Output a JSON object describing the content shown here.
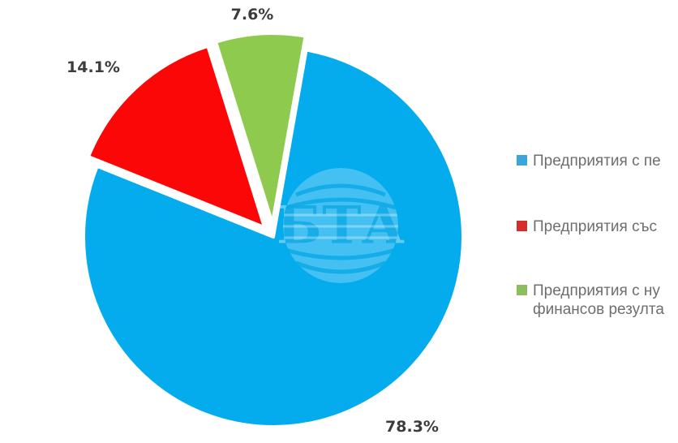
{
  "chart_data": {
    "type": "pie",
    "unit": "%",
    "slices": [
      {
        "name": "enterprises-with-profit",
        "value": 78.3,
        "data_label": "78.3%",
        "color": "#04ACEE"
      },
      {
        "name": "enterprises-with-loss",
        "value": 14.1,
        "data_label": "14.1%",
        "color": "#FB0707"
      },
      {
        "name": "enterprises-zero-financial-result",
        "value": 7.6,
        "data_label": "7.6%",
        "color": "#8DCA4E"
      }
    ],
    "start_angle_deg": 10,
    "direction": "clockwise",
    "legend_position": "right",
    "legend_entries_visible_text": [
      "Предприятия с пе",
      "Предприятия със",
      "Предприятия с ну финансов резулта"
    ]
  },
  "watermark": {
    "text": "БТА"
  },
  "legend": {
    "items": [
      {
        "marker_color": "#3BA6DB",
        "lines": [
          "Предприятия с пе"
        ]
      },
      {
        "marker_color": "#D62C2C",
        "lines": [
          "Предприятия със"
        ]
      },
      {
        "marker_color": "#8CBE5D",
        "lines": [
          "Предприятия с ну",
          "финансов резулта"
        ]
      }
    ]
  }
}
